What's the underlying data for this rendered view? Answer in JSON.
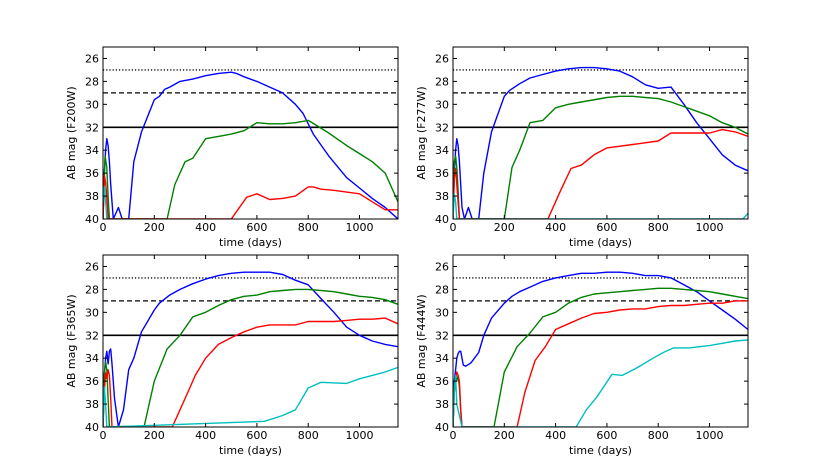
{
  "figure": {
    "panels_count": 4
  },
  "chart_data": [
    {
      "type": "line",
      "filter": "F200W",
      "xlabel": "time (days)",
      "ylabel": "AB mag (F200W)",
      "xlim": [
        0,
        1150
      ],
      "ylim": [
        40,
        25
      ],
      "ylim_note": "y axis inverted (bright at top)",
      "xticks": [
        0,
        200,
        400,
        600,
        800,
        1000
      ],
      "yticks": [
        26,
        28,
        30,
        32,
        34,
        36,
        38,
        40
      ],
      "reference_lines": [
        {
          "style": "dotted",
          "mag": 27
        },
        {
          "style": "dashed",
          "mag": 29
        },
        {
          "style": "solid",
          "mag": 32
        }
      ],
      "series": [
        {
          "name": "blue",
          "color": "#0000ff",
          "x": [
            0,
            5,
            10,
            15,
            20,
            25,
            30,
            35,
            40,
            60,
            75,
            100,
            120,
            150,
            200,
            220,
            240,
            260,
            300,
            350,
            400,
            450,
            500,
            520,
            550,
            600,
            650,
            700,
            750,
            780,
            820,
            880,
            950,
            1000,
            1050,
            1100,
            1150
          ],
          "y": [
            40,
            36,
            34,
            33,
            33.6,
            35,
            37,
            38.5,
            40,
            39,
            40,
            40,
            35,
            32.4,
            29.6,
            29.3,
            28.7,
            28.5,
            28.0,
            27.8,
            27.5,
            27.3,
            27.2,
            27.3,
            27.6,
            28.0,
            28.5,
            29.0,
            30.0,
            30.8,
            32.6,
            34.5,
            36.4,
            37.3,
            38.2,
            39.0,
            40
          ]
        },
        {
          "name": "green",
          "color": "#008000",
          "x": [
            0,
            8,
            15,
            20,
            25,
            30,
            250,
            280,
            320,
            350,
            400,
            450,
            500,
            550,
            600,
            650,
            700,
            750,
            800,
            830,
            880,
            950,
            1000,
            1050,
            1100,
            1150
          ],
          "y": [
            40,
            34.5,
            35.5,
            38,
            40,
            40,
            40,
            37,
            35.0,
            34.7,
            33.0,
            32.8,
            32.6,
            32.3,
            31.6,
            31.7,
            31.7,
            31.6,
            31.4,
            31.8,
            32.5,
            33.6,
            34.3,
            35.0,
            36.0,
            38.5
          ]
        },
        {
          "name": "red",
          "color": "#ff0000",
          "x": [
            0,
            5,
            10,
            15,
            20,
            25,
            500,
            560,
            600,
            650,
            700,
            750,
            800,
            820,
            850,
            900,
            1000,
            1050,
            1100,
            1150
          ],
          "y": [
            40,
            36.2,
            36.8,
            38,
            40,
            40,
            40,
            38.1,
            37.8,
            38.3,
            38.2,
            38.0,
            37.2,
            37.2,
            37.4,
            37.5,
            37.8,
            38.5,
            39.2,
            39.2
          ]
        },
        {
          "name": "cyan",
          "color": "#00bfbf",
          "x": [
            0,
            5,
            10,
            15
          ],
          "y": [
            38.5,
            37.2,
            38.3,
            40
          ]
        }
      ]
    },
    {
      "type": "line",
      "filter": "F277W",
      "xlabel": "time (days)",
      "ylabel": "AB mag (F277W)",
      "xlim": [
        0,
        1150
      ],
      "ylim": [
        40,
        25
      ],
      "xticks": [
        0,
        200,
        400,
        600,
        800,
        1000
      ],
      "yticks": [
        26,
        28,
        30,
        32,
        34,
        36,
        38,
        40
      ],
      "reference_lines": [
        {
          "style": "dotted",
          "mag": 27
        },
        {
          "style": "dashed",
          "mag": 29
        },
        {
          "style": "solid",
          "mag": 32
        }
      ],
      "series": [
        {
          "name": "blue",
          "color": "#0000ff",
          "x": [
            0,
            5,
            10,
            15,
            20,
            25,
            30,
            35,
            45,
            60,
            75,
            100,
            120,
            150,
            200,
            220,
            260,
            300,
            350,
            400,
            450,
            500,
            550,
            600,
            650,
            700,
            750,
            800,
            850,
            900,
            950,
            1000,
            1050,
            1100,
            1150
          ],
          "y": [
            40,
            36,
            34,
            33,
            33.6,
            35,
            37,
            39,
            40,
            39,
            40,
            40,
            36,
            32.4,
            29.3,
            28.8,
            28.2,
            27.7,
            27.4,
            27.1,
            26.9,
            26.8,
            26.8,
            26.9,
            27.1,
            27.6,
            28.3,
            28.6,
            28.5,
            30.0,
            31.6,
            33.0,
            34.4,
            35.3,
            35.8
          ]
        },
        {
          "name": "green",
          "color": "#008000",
          "x": [
            0,
            5,
            10,
            15,
            20,
            25,
            30,
            200,
            230,
            260,
            300,
            350,
            400,
            450,
            500,
            600,
            650,
            700,
            750,
            800,
            850,
            900,
            950,
            1000,
            1050,
            1100,
            1150
          ],
          "y": [
            40,
            35,
            34.5,
            35.5,
            37.5,
            40,
            40,
            40,
            35.5,
            34,
            31.6,
            31.4,
            30.3,
            30.0,
            29.8,
            29.4,
            29.3,
            29.3,
            29.4,
            29.5,
            29.8,
            30.2,
            30.6,
            31.0,
            31.6,
            32.0,
            32.6
          ]
        },
        {
          "name": "red",
          "color": "#ff0000",
          "x": [
            0,
            5,
            10,
            15,
            20,
            25,
            30,
            370,
            420,
            460,
            500,
            550,
            600,
            700,
            800,
            850,
            900,
            950,
            1000,
            1050,
            1100,
            1150
          ],
          "y": [
            40,
            36.5,
            35.6,
            37,
            38.5,
            40,
            40,
            40,
            37.5,
            35.6,
            35.3,
            34.4,
            33.8,
            33.5,
            33.2,
            32.5,
            32.5,
            32.5,
            32.5,
            32.2,
            32.4,
            32.8
          ]
        },
        {
          "name": "cyan",
          "color": "#00bfbf",
          "x": [
            0,
            5,
            10,
            15,
            1130,
            1150
          ],
          "y": [
            40,
            37.8,
            38.5,
            40,
            40,
            39.5
          ]
        }
      ]
    },
    {
      "type": "line",
      "filter": "F365W",
      "xlabel": "time (days)",
      "ylabel": "AB mag (F365W)",
      "xlim": [
        0,
        1150
      ],
      "ylim": [
        40,
        25
      ],
      "xticks": [
        0,
        200,
        400,
        600,
        800,
        1000
      ],
      "yticks": [
        26,
        28,
        30,
        32,
        34,
        36,
        38,
        40
      ],
      "reference_lines": [
        {
          "style": "dotted",
          "mag": 27
        },
        {
          "style": "dashed",
          "mag": 29
        },
        {
          "style": "solid",
          "mag": 32
        }
      ],
      "series": [
        {
          "name": "blue",
          "color": "#0000ff",
          "x": [
            0,
            5,
            10,
            15,
            20,
            25,
            30,
            35,
            45,
            60,
            80,
            100,
            120,
            150,
            200,
            220,
            260,
            300,
            350,
            400,
            450,
            500,
            550,
            600,
            650,
            700,
            750,
            800,
            850,
            900,
            950,
            1000,
            1050,
            1100,
            1150
          ],
          "y": [
            40,
            35.5,
            34,
            33.4,
            34.5,
            33.4,
            33.2,
            34.5,
            37.5,
            40,
            38.5,
            35,
            34,
            31.7,
            29.8,
            29.2,
            28.5,
            28.0,
            27.5,
            27.1,
            26.8,
            26.6,
            26.5,
            26.5,
            26.5,
            26.7,
            27.2,
            27.6,
            28.8,
            30.0,
            31.3,
            32.0,
            32.5,
            32.8,
            33.0
          ]
        },
        {
          "name": "green",
          "color": "#008000",
          "x": [
            0,
            5,
            10,
            15,
            20,
            25,
            30,
            160,
            200,
            250,
            300,
            350,
            400,
            450,
            500,
            550,
            600,
            650,
            700,
            750,
            800,
            850,
            900,
            950,
            1000,
            1050,
            1100,
            1150
          ],
          "y": [
            40,
            35.5,
            34.3,
            35,
            37.5,
            40,
            40,
            40,
            36,
            33.2,
            32.0,
            30.4,
            30.0,
            29.4,
            28.9,
            28.6,
            28.5,
            28.2,
            28.1,
            28.0,
            28.0,
            28.1,
            28.2,
            28.4,
            28.6,
            28.7,
            28.9,
            29.3
          ]
        },
        {
          "name": "red",
          "color": "#ff0000",
          "x": [
            0,
            5,
            10,
            15,
            20,
            25,
            30,
            35,
            270,
            300,
            330,
            360,
            400,
            450,
            500,
            550,
            600,
            650,
            700,
            750,
            800,
            850,
            900,
            950,
            1000,
            1050,
            1100,
            1150
          ],
          "y": [
            40,
            37,
            35.3,
            35.8,
            35,
            35.5,
            37.5,
            40,
            40,
            38.5,
            37.0,
            35.5,
            34.0,
            32.8,
            32.2,
            31.7,
            31.3,
            31.1,
            31.1,
            31.1,
            30.8,
            30.8,
            30.8,
            30.7,
            30.6,
            30.6,
            30.5,
            31.0
          ]
        },
        {
          "name": "cyan",
          "color": "#00bfbf",
          "x": [
            0,
            5,
            10,
            15,
            630,
            700,
            750,
            800,
            850,
            950,
            1000,
            1050,
            1100,
            1150
          ],
          "y": [
            40,
            36.5,
            38,
            40,
            39.5,
            39.0,
            38.5,
            36.6,
            36.1,
            36.2,
            35.8,
            35.5,
            35.2,
            34.8
          ]
        }
      ]
    },
    {
      "type": "line",
      "filter": "F444W",
      "xlabel": "time (days)",
      "ylabel": "AB mag (F444W)",
      "xlim": [
        0,
        1150
      ],
      "ylim": [
        40,
        25
      ],
      "xticks": [
        0,
        200,
        400,
        600,
        800,
        1000
      ],
      "yticks": [
        26,
        28,
        30,
        32,
        34,
        36,
        38,
        40
      ],
      "reference_lines": [
        {
          "style": "dotted",
          "mag": 27
        },
        {
          "style": "dashed",
          "mag": 29
        },
        {
          "style": "solid",
          "mag": 32
        }
      ],
      "series": [
        {
          "name": "blue",
          "color": "#0000ff",
          "x": [
            0,
            5,
            10,
            15,
            20,
            25,
            30,
            40,
            50,
            70,
            100,
            120,
            150,
            200,
            230,
            260,
            300,
            350,
            400,
            450,
            500,
            550,
            600,
            650,
            700,
            750,
            800,
            850,
            900,
            950,
            1000,
            1050,
            1100,
            1150
          ],
          "y": [
            40,
            36,
            35,
            34,
            33.6,
            33.4,
            33.4,
            34.6,
            34.7,
            34.4,
            33.5,
            32.0,
            30.5,
            29.2,
            28.6,
            28.2,
            27.8,
            27.3,
            27.0,
            26.8,
            26.6,
            26.6,
            26.5,
            26.5,
            26.6,
            26.8,
            26.8,
            27.0,
            27.6,
            28.2,
            29.0,
            29.8,
            30.6,
            31.5
          ]
        },
        {
          "name": "green",
          "color": "#008000",
          "x": [
            0,
            5,
            10,
            15,
            20,
            25,
            30,
            35,
            160,
            200,
            250,
            300,
            350,
            400,
            450,
            500,
            550,
            600,
            650,
            700,
            750,
            800,
            850,
            900,
            950,
            1000,
            1050,
            1100,
            1150
          ],
          "y": [
            40,
            36.5,
            35.5,
            36,
            35.5,
            36.5,
            38.5,
            40,
            40,
            35.2,
            33.0,
            31.8,
            30.4,
            30.0,
            29.2,
            28.7,
            28.4,
            28.3,
            28.2,
            28.1,
            28.0,
            27.9,
            27.9,
            28.0,
            28.1,
            28.2,
            28.4,
            28.6,
            28.8
          ]
        },
        {
          "name": "red",
          "color": "#ff0000",
          "x": [
            0,
            5,
            10,
            15,
            20,
            25,
            30,
            35,
            250,
            280,
            320,
            360,
            400,
            450,
            500,
            550,
            600,
            650,
            700,
            750,
            800,
            850,
            900,
            950,
            1000,
            1050,
            1100,
            1150
          ],
          "y": [
            40,
            37,
            35.8,
            35.2,
            35.5,
            36,
            38.5,
            40,
            40,
            37.0,
            34.2,
            33.0,
            31.5,
            31.0,
            30.5,
            30.1,
            30.0,
            29.8,
            29.7,
            29.7,
            29.5,
            29.4,
            29.4,
            29.3,
            29.2,
            29.2,
            29.0,
            29.0
          ]
        },
        {
          "name": "cyan",
          "color": "#00bfbf",
          "x": [
            0,
            5,
            10,
            15,
            35,
            480,
            520,
            560,
            620,
            660,
            720,
            780,
            820,
            860,
            920,
            1000,
            1050,
            1100,
            1150
          ],
          "y": [
            40,
            37,
            35.5,
            38,
            40,
            40,
            38.5,
            37.4,
            35.4,
            35.5,
            34.8,
            34.0,
            33.5,
            33.1,
            33.1,
            32.9,
            32.7,
            32.5,
            32.4
          ]
        }
      ]
    }
  ]
}
